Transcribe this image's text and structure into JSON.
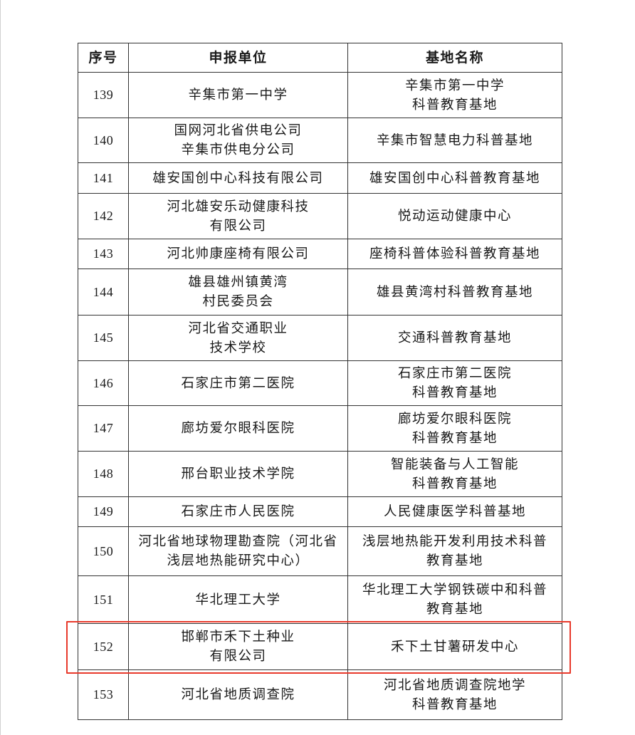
{
  "table": {
    "headers": [
      "序号",
      "申报单位",
      "基地名称"
    ],
    "rows": [
      {
        "no": "139",
        "unit": [
          "辛集市第一中学"
        ],
        "base": [
          "辛集市第一中学",
          "科普教育基地"
        ]
      },
      {
        "no": "140",
        "unit": [
          "国网河北省供电公司",
          "辛集市供电分公司"
        ],
        "base": [
          "辛集市智慧电力科普基地"
        ]
      },
      {
        "no": "141",
        "unit": [
          "雄安国创中心科技有限公司"
        ],
        "base": [
          "雄安国创中心科普教育基地"
        ]
      },
      {
        "no": "142",
        "unit": [
          "河北雄安乐动健康科技",
          "有限公司"
        ],
        "base": [
          "悦动运动健康中心"
        ]
      },
      {
        "no": "143",
        "unit": [
          "河北帅康座椅有限公司"
        ],
        "base": [
          "座椅科普体验科普教育基地"
        ]
      },
      {
        "no": "144",
        "unit": [
          "雄县雄州镇黄湾",
          "村民委员会"
        ],
        "base": [
          "雄县黄湾村科普教育基地"
        ]
      },
      {
        "no": "145",
        "unit": [
          "河北省交通职业",
          "技术学校"
        ],
        "base": [
          "交通科普教育基地"
        ]
      },
      {
        "no": "146",
        "unit": [
          "石家庄市第二医院"
        ],
        "base": [
          "石家庄市第二医院",
          "科普教育基地"
        ]
      },
      {
        "no": "147",
        "unit": [
          "廊坊爱尔眼科医院"
        ],
        "base": [
          "廊坊爱尔眼科医院",
          "科普教育基地"
        ]
      },
      {
        "no": "148",
        "unit": [
          "邢台职业技术学院"
        ],
        "base": [
          "智能装备与人工智能",
          "科普教育基地"
        ]
      },
      {
        "no": "149",
        "unit": [
          "石家庄市人民医院"
        ],
        "base": [
          "人民健康医学科普基地"
        ]
      },
      {
        "no": "150",
        "unit": [
          "河北省地球物理勘查院（河北省",
          "浅层地热能研究中心）"
        ],
        "base": [
          "浅层地热能开发利用技术科普",
          "教育基地"
        ]
      },
      {
        "no": "151",
        "unit": [
          "华北理工大学"
        ],
        "base": [
          "华北理工大学钢铁碳中和科普",
          "教育基地"
        ]
      },
      {
        "no": "152",
        "unit": [
          "邯郸市禾下土种业",
          "有限公司"
        ],
        "base": [
          "禾下土甘薯研发中心"
        ],
        "highlighted": true
      },
      {
        "no": "153",
        "unit": [
          "河北省地质调查院"
        ],
        "base": [
          "河北省地质调查院地学",
          "科普教育基地"
        ]
      }
    ]
  },
  "highlight_color": "#e8392b"
}
